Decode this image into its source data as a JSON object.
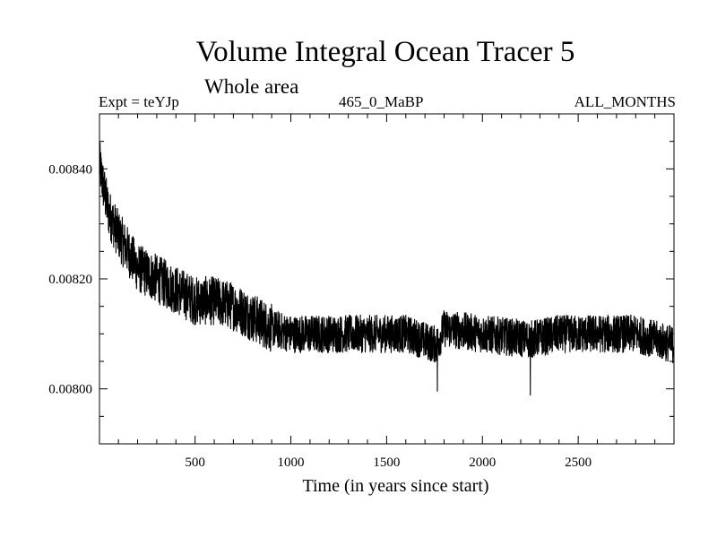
{
  "chart_data": {
    "type": "line",
    "title": "Volume Integral Ocean Tracer 5",
    "subtitle": "Whole area",
    "header_left": "Expt = teYJp",
    "header_center": "465_0_MaBP",
    "header_right": "ALL_MONTHS",
    "xlabel": "Time (in years since start)",
    "ylabel": "",
    "xlim": [
      1,
      3000
    ],
    "ylim": [
      0.0079,
      0.0085
    ],
    "x_ticks": [
      500,
      1000,
      1500,
      2000,
      2500
    ],
    "x_tick_labels": [
      "500",
      "1000",
      "1500",
      "2000",
      "2500"
    ],
    "y_ticks": [
      0.008,
      0.0082,
      0.0084
    ],
    "y_tick_labels": [
      "0.00800",
      "0.00820",
      "0.00840"
    ],
    "series": [
      {
        "name": "Volume integral",
        "color": "#000000",
        "x": [
          1,
          25,
          50,
          100,
          150,
          200,
          300,
          400,
          500,
          600,
          700,
          800,
          900,
          1000,
          1200,
          1400,
          1600,
          1760,
          1800,
          2000,
          2250,
          2400,
          2600,
          2800,
          3000
        ],
        "values": [
          0.00841,
          0.00836,
          0.00832,
          0.00828,
          0.00825,
          0.00822,
          0.0082,
          0.00818,
          0.00816,
          0.00816,
          0.00815,
          0.00813,
          0.00811,
          0.0081,
          0.0081,
          0.0081,
          0.0081,
          0.00808,
          0.00811,
          0.0081,
          0.00809,
          0.0081,
          0.0081,
          0.0081,
          0.00808
        ]
      }
    ]
  }
}
